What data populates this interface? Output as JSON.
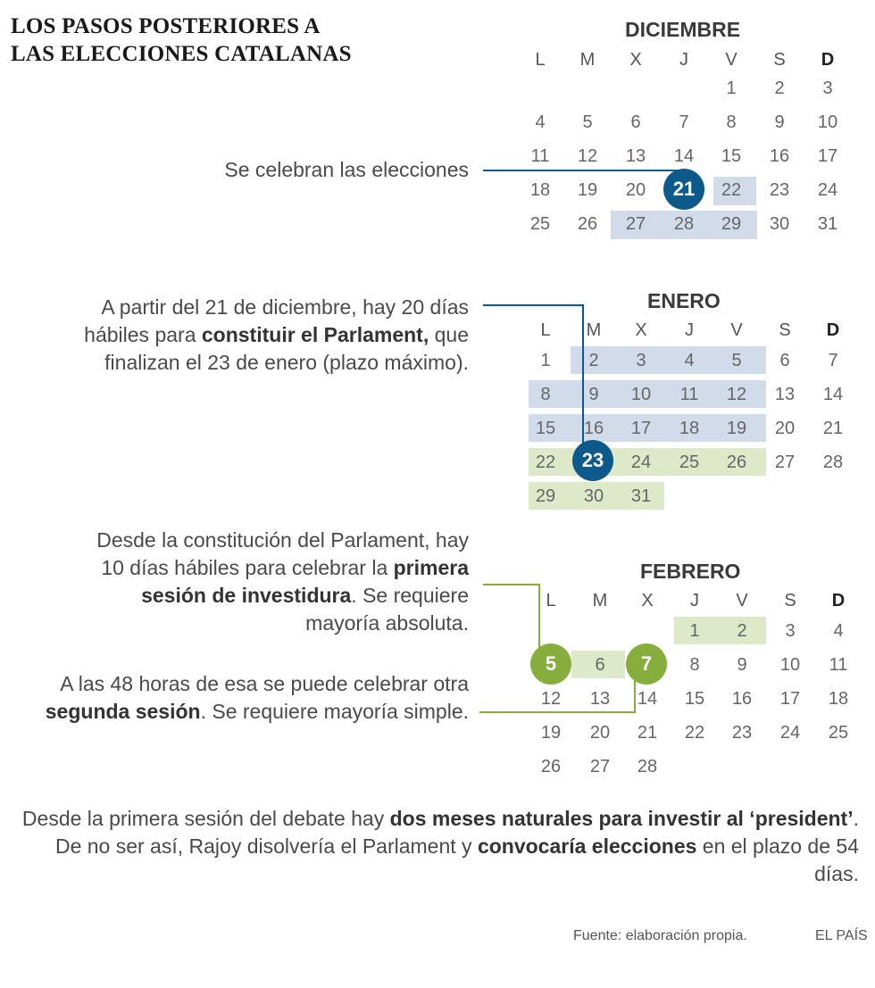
{
  "title": [
    "LOS PASOS POSTERIORES A",
    "LAS ELECCIONES CATALANAS"
  ],
  "weekdays": [
    "L",
    "M",
    "X",
    "J",
    "V",
    "S",
    "D"
  ],
  "months": [
    {
      "id": "dic",
      "name": "DICIEMBRE",
      "weeks": [
        [
          "",
          "",
          "",
          "",
          "1",
          "2",
          "3"
        ],
        [
          "4",
          "5",
          "6",
          "7",
          "8",
          "9",
          "10"
        ],
        [
          "11",
          "12",
          "13",
          "14",
          "15",
          "16",
          "17"
        ],
        [
          "18",
          "19",
          "20",
          "21",
          "22",
          "23",
          "24"
        ],
        [
          "25",
          "26",
          "27",
          "28",
          "29",
          "30",
          "31"
        ]
      ],
      "highlight": "21"
    },
    {
      "id": "ene",
      "name": "ENERO",
      "weeks": [
        [
          "1",
          "2",
          "3",
          "4",
          "5",
          "6",
          "7"
        ],
        [
          "8",
          "9",
          "10",
          "11",
          "12",
          "13",
          "14"
        ],
        [
          "15",
          "16",
          "17",
          "18",
          "19",
          "20",
          "21"
        ],
        [
          "22",
          "23",
          "24",
          "25",
          "26",
          "27",
          "28"
        ],
        [
          "29",
          "30",
          "31",
          "",
          "",
          "",
          ""
        ]
      ],
      "highlight": "23"
    },
    {
      "id": "feb",
      "name": "FEBRERO",
      "weeks": [
        [
          "",
          "",
          "",
          "1",
          "2",
          "3",
          "4"
        ],
        [
          "5",
          "6",
          "7",
          "8",
          "9",
          "10",
          "11"
        ],
        [
          "12",
          "13",
          "14",
          "15",
          "16",
          "17",
          "18"
        ],
        [
          "19",
          "20",
          "21",
          "22",
          "23",
          "24",
          "25"
        ],
        [
          "26",
          "27",
          "28",
          "",
          "",
          "",
          ""
        ]
      ],
      "highlight": [
        "5",
        "7"
      ]
    }
  ],
  "annotations": {
    "a1": "Se celebran las elecciones",
    "a2": {
      "t1": "A partir del 21 de diciembre, hay 20 días hábiles para ",
      "b1": "constituir el Parlament,",
      "t2": " que finalizan el 23 de enero (plazo máximo)."
    },
    "a3": {
      "t1": "Desde la constitución del Parlament, hay 10 días hábiles para celebrar la ",
      "b1": "primera sesión de investidura",
      "t2": ". Se requiere mayoría absoluta."
    },
    "a4": {
      "t1": "A las 48 horas de esa se puede celebrar otra ",
      "b1": "segunda sesión",
      "t2": ". Se requiere mayoría simple."
    }
  },
  "footer": {
    "t1": "Desde la primera sesión del debate hay ",
    "b1": "dos meses naturales para investir al ‘president’",
    "t2": ". De no ser así, Rajoy disolvería el Parlament y ",
    "b2": "convocaría elecciones",
    "t3": " en el plazo de 54 días."
  },
  "source": "Fuente: elaboración propia.",
  "brand": "EL PAÍS",
  "colors": {
    "blue": "#0c5a8c",
    "green": "#86ae3c",
    "band_blue": "#d1dbea",
    "band_green": "#dde9c8"
  }
}
